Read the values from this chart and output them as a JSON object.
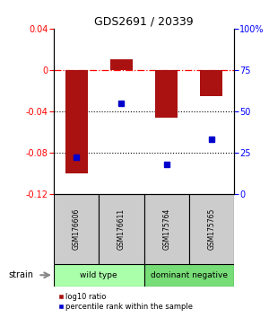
{
  "title": "GDS2691 / 20339",
  "samples": [
    "GSM176606",
    "GSM176611",
    "GSM175764",
    "GSM175765"
  ],
  "log10_ratios": [
    -0.1,
    0.01,
    -0.046,
    -0.025
  ],
  "percentile_ranks": [
    22,
    55,
    18,
    33
  ],
  "bar_color": "#aa1111",
  "dot_color": "#0000cc",
  "ylim_left": [
    -0.12,
    0.04
  ],
  "ylim_right": [
    0,
    100
  ],
  "yticks_left": [
    0.04,
    0,
    -0.04,
    -0.08,
    -0.12
  ],
  "yticks_right": [
    100,
    75,
    50,
    25,
    0
  ],
  "dotted_lines": [
    -0.04,
    -0.08
  ],
  "groups": [
    {
      "label": "wild type",
      "samples": [
        0,
        1
      ],
      "color": "#aaffaa"
    },
    {
      "label": "dominant negative",
      "samples": [
        2,
        3
      ],
      "color": "#77dd77"
    }
  ],
  "strain_label": "strain",
  "legend_red": "log10 ratio",
  "legend_blue": "percentile rank within the sample",
  "bg_color": "#ffffff",
  "sample_box_color": "#cccccc",
  "bar_width": 0.5
}
